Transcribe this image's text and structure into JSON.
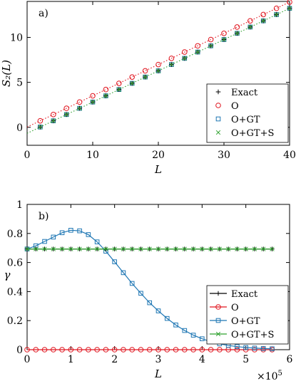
{
  "chart_data": [
    {
      "type": "scatter",
      "panel_label": "a)",
      "xlabel": "L",
      "ylabel": "S₂(L)",
      "xlim": [
        0,
        40
      ],
      "ylim": [
        -2,
        14
      ],
      "xticks": [
        0,
        10,
        20,
        30,
        40
      ],
      "yticks": [
        0,
        5,
        10
      ],
      "grid": false,
      "legend_position": "bottom-right",
      "x": [
        2,
        4,
        6,
        8,
        10,
        12,
        14,
        16,
        18,
        20,
        22,
        24,
        26,
        28,
        30,
        32,
        34,
        36,
        38,
        40
      ],
      "series": [
        {
          "name": "Exact",
          "marker": "plus",
          "color": "#000000",
          "values": [
            0.03,
            0.72,
            1.42,
            2.11,
            2.81,
            3.5,
            4.2,
            4.89,
            5.59,
            6.28,
            6.98,
            7.67,
            8.37,
            9.06,
            9.76,
            10.45,
            11.15,
            11.84,
            12.54,
            13.23
          ]
        },
        {
          "name": "O",
          "marker": "circle",
          "color": "#e0141e",
          "values": [
            0.72,
            1.42,
            2.11,
            2.81,
            3.5,
            4.2,
            4.89,
            5.59,
            6.28,
            6.98,
            7.67,
            8.37,
            9.06,
            9.76,
            10.45,
            11.15,
            11.84,
            12.54,
            13.23,
            13.93
          ]
        },
        {
          "name": "O+GT",
          "marker": "square",
          "color": "#1f77b4",
          "values": [
            0.03,
            0.72,
            1.42,
            2.11,
            2.81,
            3.5,
            4.2,
            4.89,
            5.59,
            6.28,
            6.98,
            7.67,
            8.37,
            9.06,
            9.76,
            10.45,
            11.15,
            11.84,
            12.54,
            13.23
          ]
        },
        {
          "name": "O+GT+S",
          "marker": "x",
          "color": "#2ca02c",
          "values": [
            0.03,
            0.72,
            1.42,
            2.11,
            2.81,
            3.5,
            4.2,
            4.89,
            5.59,
            6.28,
            6.98,
            7.67,
            8.37,
            9.06,
            9.76,
            10.45,
            11.15,
            11.84,
            12.54,
            13.23
          ]
        }
      ],
      "fit_lines": [
        {
          "color": "#e0141e",
          "style": "dotted",
          "points": [
            [
              0,
              0.03
            ],
            [
              40,
              13.93
            ]
          ]
        },
        {
          "color": "#2ca02c",
          "style": "dotted",
          "points": [
            [
              0,
              -0.67
            ],
            [
              40,
              13.23
            ]
          ]
        }
      ]
    },
    {
      "type": "line",
      "panel_label": "b)",
      "xlabel": "L",
      "ylabel": "γ",
      "x_exponent_label": "×10",
      "x_exponent": "5",
      "xlim": [
        0,
        6
      ],
      "ylim": [
        0,
        1
      ],
      "xticks": [
        0,
        1,
        2,
        3,
        4,
        5,
        6
      ],
      "yticks": [
        0,
        0.2,
        0.4,
        0.6,
        0.8,
        1
      ],
      "grid": false,
      "legend_position": "bottom-right",
      "x": [
        0,
        0.2,
        0.4,
        0.6,
        0.8,
        1.0,
        1.2,
        1.4,
        1.6,
        1.8,
        2.0,
        2.2,
        2.4,
        2.6,
        2.8,
        3.0,
        3.2,
        3.4,
        3.6,
        3.8,
        4.0,
        4.2,
        4.4,
        4.6,
        4.8,
        5.0,
        5.2,
        5.4,
        5.6
      ],
      "series": [
        {
          "name": "Exact",
          "marker": "plus",
          "color": "#000000",
          "values": [
            0.693,
            0.693,
            0.693,
            0.693,
            0.693,
            0.693,
            0.693,
            0.693,
            0.693,
            0.693,
            0.693,
            0.693,
            0.693,
            0.693,
            0.693,
            0.693,
            0.693,
            0.693,
            0.693,
            0.693,
            0.693,
            0.693,
            0.693,
            0.693,
            0.693,
            0.693,
            0.693,
            0.693,
            0.693
          ]
        },
        {
          "name": "O",
          "marker": "circle",
          "color": "#e0141e",
          "values": [
            0,
            0,
            0,
            0,
            0,
            0,
            0,
            0,
            0,
            0,
            0,
            0,
            0,
            0,
            0,
            0,
            0,
            0,
            0,
            0,
            0,
            0,
            0,
            0,
            0,
            0,
            0,
            0,
            0
          ]
        },
        {
          "name": "O+GT",
          "marker": "square",
          "color": "#1f77b4",
          "values": [
            0.693,
            0.715,
            0.745,
            0.775,
            0.805,
            0.822,
            0.818,
            0.792,
            0.742,
            0.678,
            0.605,
            0.53,
            0.456,
            0.388,
            0.323,
            0.267,
            0.215,
            0.17,
            0.132,
            0.1,
            0.075,
            0.055,
            0.04,
            0.029,
            0.021,
            0.015,
            0.011,
            0.008,
            0.006
          ]
        },
        {
          "name": "O+GT+S",
          "marker": "x",
          "color": "#2ca02c",
          "values": [
            0.693,
            0.693,
            0.693,
            0.693,
            0.693,
            0.693,
            0.693,
            0.693,
            0.693,
            0.693,
            0.693,
            0.693,
            0.693,
            0.693,
            0.693,
            0.693,
            0.693,
            0.693,
            0.693,
            0.693,
            0.693,
            0.693,
            0.693,
            0.693,
            0.693,
            0.693,
            0.693,
            0.693,
            0.693
          ]
        }
      ]
    }
  ]
}
